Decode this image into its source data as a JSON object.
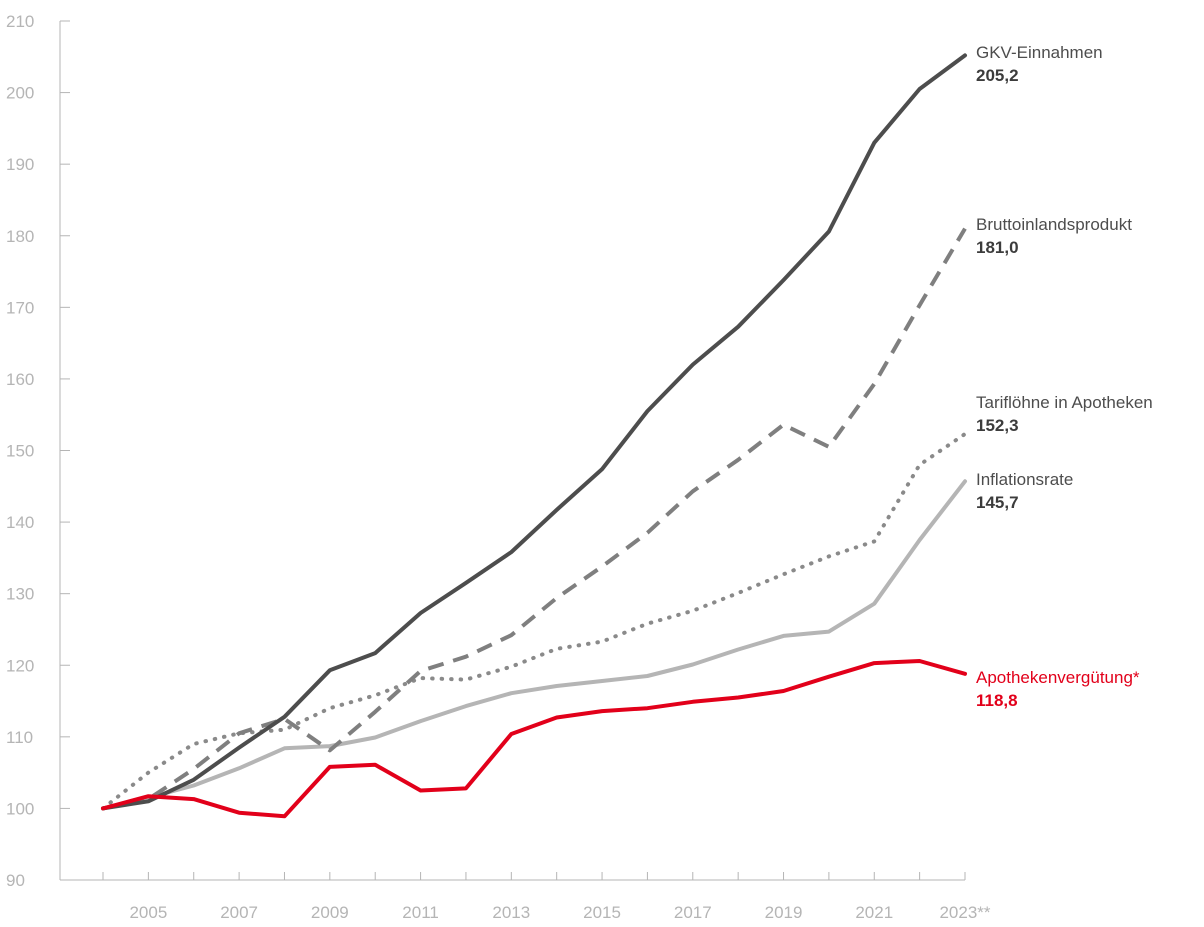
{
  "chart_data": {
    "type": "line",
    "ylim": [
      90,
      210
    ],
    "yticks": [
      "90",
      "100",
      "110",
      "120",
      "130",
      "140",
      "150",
      "160",
      "170",
      "180",
      "190",
      "200",
      "210"
    ],
    "x": [
      2004,
      2005,
      2006,
      2007,
      2008,
      2009,
      2010,
      2011,
      2012,
      2013,
      2014,
      2015,
      2016,
      2017,
      2018,
      2019,
      2020,
      2021,
      2022,
      2023
    ],
    "xtick_labels": [
      "2005",
      "2007",
      "2009",
      "2011",
      "2013",
      "2015",
      "2017",
      "2019",
      "2021",
      "2023**"
    ],
    "grid": false,
    "legend": "right end labels",
    "series": [
      {
        "name": "GKV-Einnahmen",
        "end_label": "205,2",
        "color": "#4d4d4d",
        "style": "solid",
        "values": [
          100,
          101,
          104,
          108.5,
          112.8,
          119.3,
          121.7,
          127.3,
          131.5,
          135.8,
          141.7,
          147.4,
          155.5,
          162,
          167.3,
          173.8,
          180.6,
          193,
          200.5,
          205.2
        ]
      },
      {
        "name": "Bruttoinlandsprodukt",
        "end_label": "181,0",
        "color": "#7f7f7f",
        "style": "dashed",
        "values": [
          100,
          101.3,
          105.5,
          110.5,
          112.5,
          108.1,
          113.5,
          119.2,
          121.2,
          124.2,
          129.4,
          133.8,
          138.5,
          144.3,
          148.7,
          153.6,
          150.5,
          159.3,
          170.3,
          181
        ]
      },
      {
        "name": "Tariflöhne in Apotheken",
        "end_label": "152,3",
        "color": "#8a8a8a",
        "style": "dotted",
        "values": [
          100,
          105,
          109,
          110.5,
          111,
          114,
          115.8,
          118.2,
          118,
          119.8,
          122.3,
          123.3,
          125.8,
          127.6,
          130.1,
          132.7,
          135.2,
          137.3,
          148,
          152.3
        ]
      },
      {
        "name": "Inflationsrate",
        "end_label": "145,7",
        "color": "#b5b5b5",
        "style": "solid",
        "values": [
          100,
          101.5,
          103.2,
          105.6,
          108.4,
          108.7,
          109.9,
          112.2,
          114.3,
          116.1,
          117.1,
          117.8,
          118.5,
          120.1,
          122.2,
          124.1,
          124.7,
          128.6,
          137.5,
          145.7
        ]
      },
      {
        "name": "Apothekenvergütung*",
        "end_label": "118,8",
        "color": "#e2001a",
        "style": "solid",
        "values": [
          100,
          101.7,
          101.3,
          99.4,
          98.9,
          105.8,
          106.1,
          102.5,
          102.8,
          110.4,
          112.7,
          113.6,
          114,
          114.9,
          115.5,
          116.4,
          118.4,
          120.3,
          120.6,
          118.8
        ]
      }
    ]
  }
}
